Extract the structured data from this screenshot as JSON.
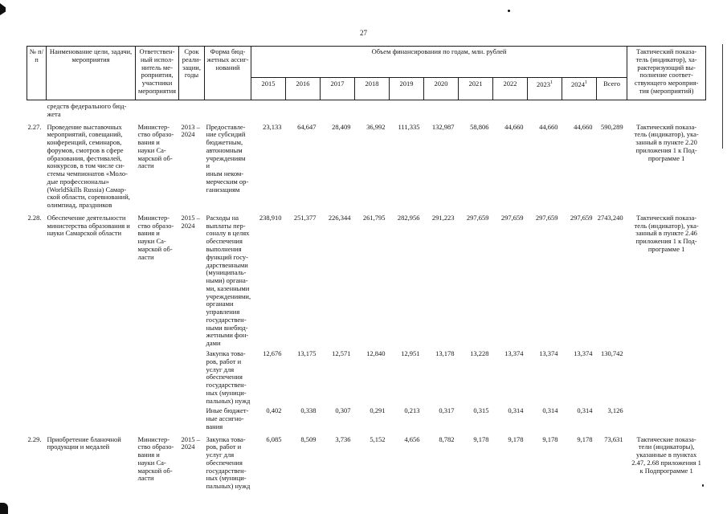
{
  "page_number": "27",
  "table": {
    "headers": {
      "num": "№ п/п",
      "name": "Наименование цели, задачи,\nмероприятия",
      "executor": "Ответствен-\nный испол-\nнитель ме-\nроприятия,\nучастники\nмероприятия",
      "period": "Срок\nреали-\nзации,\nгоды",
      "form": "Форма бюд-\nжетных ассиг-\nнований",
      "finance_group": "Объем финансирования по годам, млн. рублей",
      "years": [
        "2015",
        "2016",
        "2017",
        "2018",
        "2019",
        "2020",
        "2021",
        "2022",
        "2023",
        "2024"
      ],
      "year_footnote_mark": "1",
      "total": "Всего",
      "indicator": "Тактический показа-\nтель (индикатор), ха-\nрактеризующий вы-\nполнение соответ-\nствующего мероприя-\nтия (мероприятий)"
    },
    "carryover_text": "средств федерального бюд-\nжета",
    "rows": [
      {
        "num": "2.27.",
        "name": "Проведение выставочных\nмероприятий, совещаний,\nконференций, семинаров,\nфорумов, смотров в сфере\nобразования, фестивалей,\nконкурсов, в том числе си-\nстемы чемпионатов «Моло-\nдые профессионалы»\n(WorldSkills Russia) Самар-\nской области, соревнований,\nолимпиад, праздников",
        "executor": "Министер-\nство образо-\nвания и\nнауки Са-\nмарской об-\nласти",
        "period": "2013 –\n2024",
        "indicator": "Тактический показа-\nтель (индикатор), ука-\nзанный в пункте 2.20\nприложения 1 к Под-\nпрограмме 1",
        "subrows": [
          {
            "form": "Предоставле-\nние субсидий\nбюджетным,\nавтономным\nучреждениям и\nиным неком-\nмерческим ор-\nганизациям",
            "values": [
              "23,133",
              "64,647",
              "28,409",
              "36,992",
              "111,335",
              "132,987",
              "58,806",
              "44,660",
              "44,660",
              "44,660",
              "590,289"
            ]
          }
        ]
      },
      {
        "num": "2.28.",
        "name": "Обеспечение деятельности\nминистерства образования и\nнауки Самарской области",
        "executor": "Министер-\nство образо-\nвания и\nнауки Са-\nмарской об-\nласти",
        "period": "2015 –\n2024",
        "indicator": "Тактический показа-\nтель (индикатор), ука-\nзанный в пункте 2.46\nприложения 1 к Под-\nпрограмме 1",
        "subrows": [
          {
            "form": "Расходы на\nвыплаты пер-\nсоналу в целях\nобеспечения\nвыполнения\nфункций госу-\nдарственными\n(муниципаль-\nными) органа-\nми, казенными\nучреждениями,\nорганами\nуправления\nгосударствен-\nными внебюд-\nжетными фон-\nдами",
            "values": [
              "238,910",
              "251,377",
              "226,344",
              "261,795",
              "282,956",
              "291,223",
              "297,659",
              "297,659",
              "297,659",
              "297,659",
              "2743,240"
            ]
          },
          {
            "form": "Закупка това-\nров, работ и\nуслуг для\nобеспечения\nгосударствен-\nных (муници-\nпальных) нужд",
            "values": [
              "12,676",
              "13,175",
              "12,571",
              "12,840",
              "12,951",
              "13,178",
              "13,228",
              "13,374",
              "13,374",
              "13,374",
              "130,742"
            ]
          },
          {
            "form": "Иные бюджет-\nные ассигно-\nвания",
            "values": [
              "0,402",
              "0,338",
              "0,307",
              "0,291",
              "0,213",
              "0,317",
              "0,315",
              "0,314",
              "0,314",
              "0,314",
              "3,126"
            ]
          }
        ]
      },
      {
        "num": "2.29.",
        "name": "Приобретение бланочной\nпродукции и медалей",
        "executor": "Министер-\nство образо-\nвания и\nнауки Са-\nмарской об-\nласти",
        "period": "2015 –\n2024",
        "indicator": "Тактические показа-\nтели (индикаторы),\nуказанные в пунктах\n2.47, 2.68 приложения 1\nк Подпрограмме 1",
        "subrows": [
          {
            "form": "Закупка това-\nров, работ и\nуслуг для\nобеспечения\nгосударствен-\nных (муници-\nпальных) нужд",
            "values": [
              "6,085",
              "8,509",
              "3,736",
              "5,152",
              "4,656",
              "8,782",
              "9,178",
              "9,178",
              "9,178",
              "9,178",
              "73,631"
            ]
          }
        ]
      }
    ]
  }
}
